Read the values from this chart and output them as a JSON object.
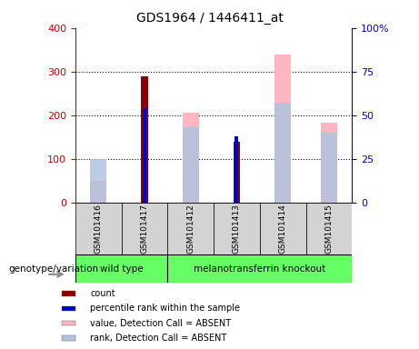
{
  "title": "GDS1964 / 1446411_at",
  "samples": [
    "GSM101416",
    "GSM101417",
    "GSM101412",
    "GSM101413",
    "GSM101414",
    "GSM101415"
  ],
  "count_values": [
    0,
    290,
    0,
    140,
    0,
    0
  ],
  "rank_values": [
    0,
    54,
    0,
    38,
    0,
    0
  ],
  "absent_value_values": [
    50,
    0,
    205,
    0,
    340,
    183
  ],
  "absent_rank_values": [
    25,
    0,
    43,
    0,
    57,
    40
  ],
  "left_ylim": [
    0,
    400
  ],
  "right_ylim": [
    0,
    100
  ],
  "left_yticks": [
    0,
    100,
    200,
    300,
    400
  ],
  "right_yticks": [
    0,
    25,
    50,
    75,
    100
  ],
  "right_yticklabels": [
    "0",
    "25",
    "50",
    "75",
    "100%"
  ],
  "color_count": "#8B0000",
  "color_rank": "#0000CD",
  "color_absent_value": "#FFB6C1",
  "color_absent_rank": "#B0C4DE",
  "left_axis_color": "#CC0000",
  "right_axis_color": "#0000CC",
  "group_label": "genotype/variation",
  "wt_indices": [
    0,
    1
  ],
  "mko_indices": [
    2,
    3,
    4,
    5
  ],
  "legend_items": [
    {
      "label": "count",
      "color": "#8B0000"
    },
    {
      "label": "percentile rank within the sample",
      "color": "#0000CD"
    },
    {
      "label": "value, Detection Call = ABSENT",
      "color": "#FFB6C1"
    },
    {
      "label": "rank, Detection Call = ABSENT",
      "color": "#B0C4DE"
    }
  ]
}
